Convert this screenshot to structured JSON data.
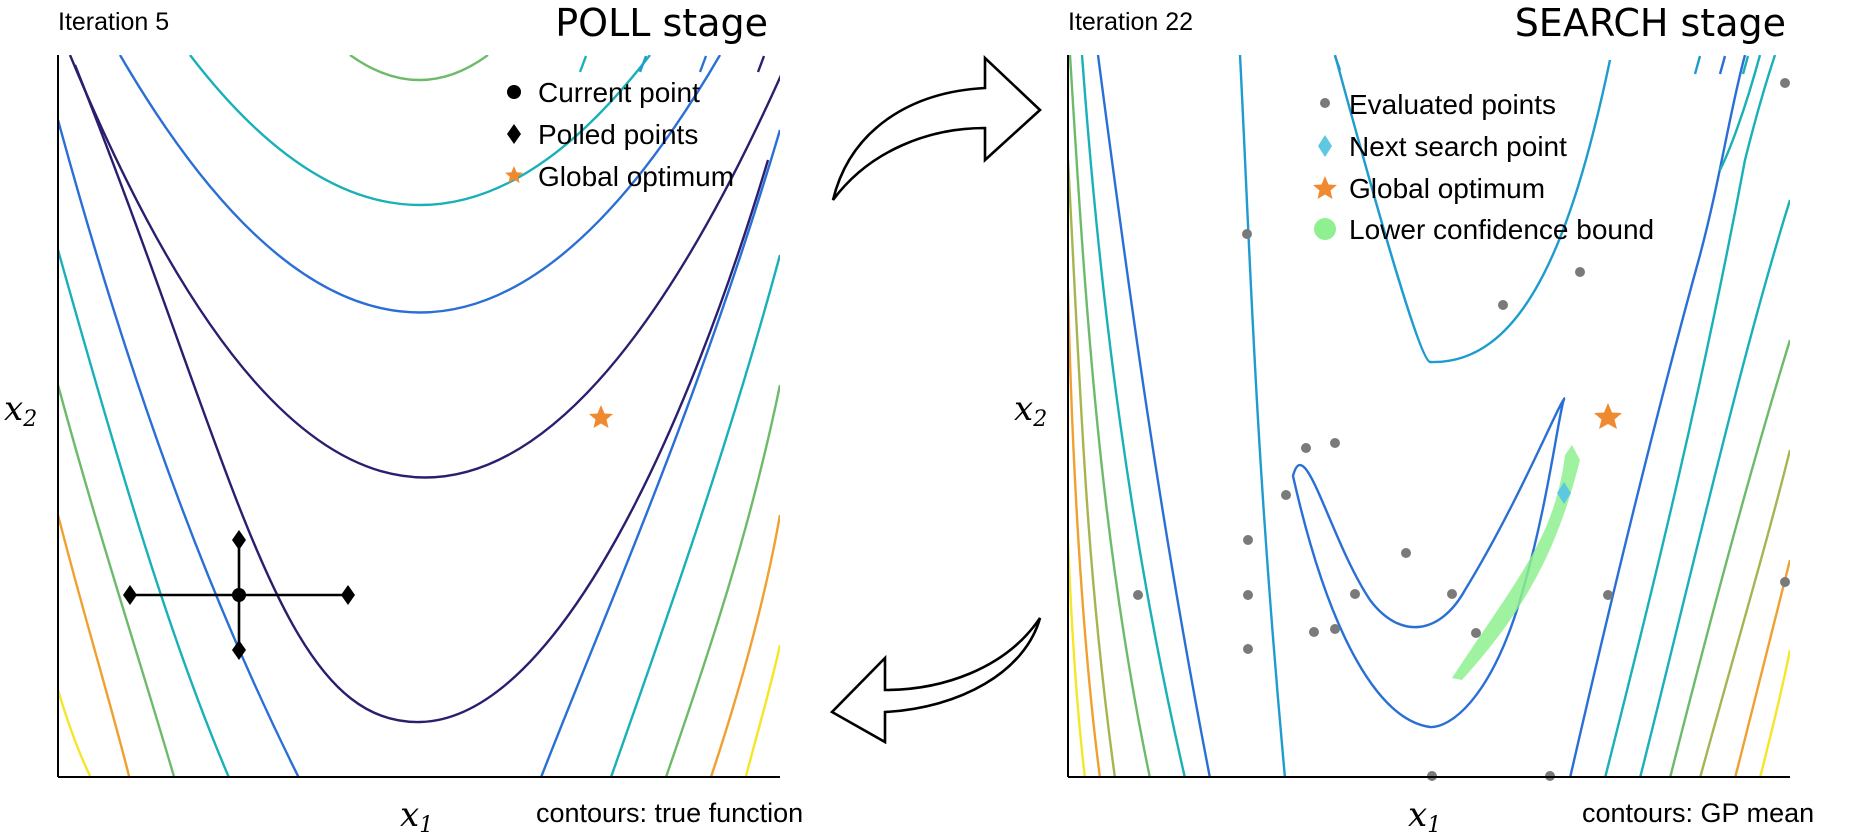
{
  "poll": {
    "iteration": "Iteration 5",
    "stage": "POLL stage",
    "legend": [
      "Current point",
      "Polled points",
      "Global optimum"
    ],
    "xlabel": "x",
    "xlabel_sub": "1",
    "ylabel": "x",
    "ylabel_sub": "2",
    "note": "contours: true function"
  },
  "search": {
    "iteration": "Iteration 22",
    "stage": "SEARCH stage",
    "legend": [
      "Evaluated points",
      "Next search point",
      "Global optimum",
      "Lower confidence bound"
    ],
    "xlabel": "x",
    "xlabel_sub": "1",
    "ylabel": "x",
    "ylabel_sub": "2",
    "note": "contours: GP mean"
  },
  "colors": {
    "optimum": "#f08a30",
    "next_search": "#5ec8e0",
    "evaluated": "#7a7a7a",
    "lcb": "#8ef08e",
    "contour_levels": [
      "#2b1e6e",
      "#2a6fd6",
      "#1e9cd0",
      "#19b0b8",
      "#6dbb6a",
      "#a8b450",
      "#f0a030",
      "#f5e62a"
    ]
  }
}
